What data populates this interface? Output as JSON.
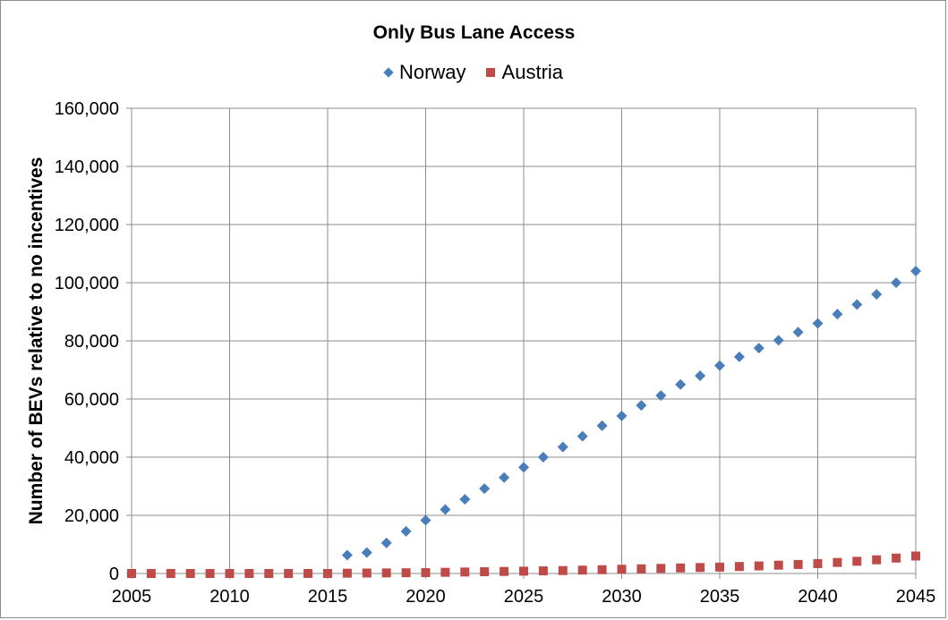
{
  "chart_data": {
    "type": "scatter",
    "title": "Only Bus Lane Access",
    "xlabel": "",
    "ylabel": "Number of BEVs relative to no incentives",
    "xlim": [
      2005,
      2045
    ],
    "ylim": [
      0,
      160000
    ],
    "xticks": [
      "2005",
      "2010",
      "2015",
      "2020",
      "2025",
      "2030",
      "2035",
      "2040",
      "2045"
    ],
    "yticks": [
      "0",
      "20,000",
      "40,000",
      "60,000",
      "80,000",
      "100,000",
      "120,000",
      "140,000",
      "160,000"
    ],
    "grid": true,
    "legend_position": "top",
    "series": [
      {
        "name": "Norway",
        "color": "#4a7ebb",
        "marker": "diamond",
        "x": [
          2016,
          2017,
          2018,
          2019,
          2020,
          2021,
          2022,
          2023,
          2024,
          2025,
          2026,
          2027,
          2028,
          2029,
          2030,
          2031,
          2032,
          2033,
          2034,
          2035,
          2036,
          2037,
          2038,
          2039,
          2040,
          2041,
          2042,
          2043,
          2044,
          2045
        ],
        "values": [
          6300,
          7200,
          10500,
          14500,
          18300,
          22000,
          25500,
          29200,
          33000,
          36500,
          40000,
          43500,
          47200,
          50800,
          54200,
          57800,
          61200,
          65000,
          68000,
          71500,
          74500,
          77500,
          80200,
          83000,
          86000,
          89200,
          92500,
          96000,
          100000,
          104000
        ]
      },
      {
        "name": "Austria",
        "color": "#be4b48",
        "marker": "square",
        "x": [
          2005,
          2006,
          2007,
          2008,
          2009,
          2010,
          2011,
          2012,
          2013,
          2014,
          2015,
          2016,
          2017,
          2018,
          2019,
          2020,
          2021,
          2022,
          2023,
          2024,
          2025,
          2026,
          2027,
          2028,
          2029,
          2030,
          2031,
          2032,
          2033,
          2034,
          2035,
          2036,
          2037,
          2038,
          2039,
          2040,
          2041,
          2042,
          2043,
          2044,
          2045
        ],
        "values": [
          0,
          0,
          0,
          0,
          0,
          0,
          0,
          0,
          0,
          0,
          0,
          100,
          150,
          200,
          250,
          300,
          400,
          500,
          600,
          700,
          800,
          900,
          1000,
          1150,
          1300,
          1450,
          1600,
          1750,
          1900,
          2050,
          2200,
          2400,
          2600,
          2850,
          3100,
          3400,
          3800,
          4200,
          4700,
          5300,
          6000
        ]
      }
    ]
  }
}
